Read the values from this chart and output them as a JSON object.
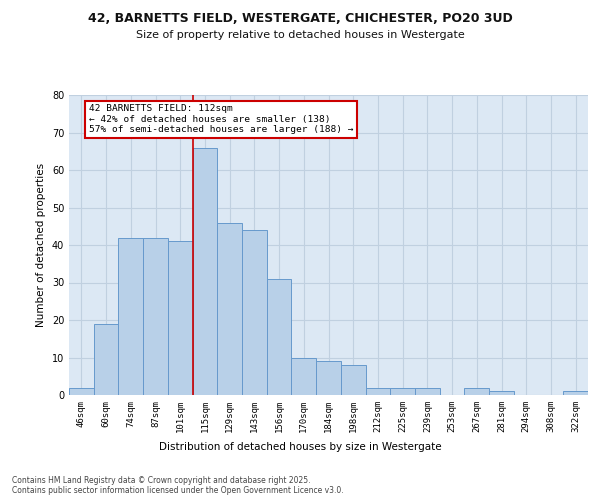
{
  "title_line1": "42, BARNETTS FIELD, WESTERGATE, CHICHESTER, PO20 3UD",
  "title_line2": "Size of property relative to detached houses in Westergate",
  "xlabel": "Distribution of detached houses by size in Westergate",
  "ylabel": "Number of detached properties",
  "bar_labels": [
    "46sqm",
    "60sqm",
    "74sqm",
    "87sqm",
    "101sqm",
    "115sqm",
    "129sqm",
    "143sqm",
    "156sqm",
    "170sqm",
    "184sqm",
    "198sqm",
    "212sqm",
    "225sqm",
    "239sqm",
    "253sqm",
    "267sqm",
    "281sqm",
    "294sqm",
    "308sqm",
    "322sqm"
  ],
  "bar_values": [
    2,
    19,
    42,
    42,
    41,
    66,
    46,
    44,
    31,
    10,
    9,
    8,
    2,
    2,
    2,
    0,
    2,
    1,
    0,
    0,
    1
  ],
  "bar_color": "#b8d0e8",
  "bar_edge_color": "#6699cc",
  "vline_x": 4.5,
  "vline_color": "#cc0000",
  "annotation_text": "42 BARNETTS FIELD: 112sqm\n← 42% of detached houses are smaller (138)\n57% of semi-detached houses are larger (188) →",
  "annotation_box_color": "#ffffff",
  "annotation_box_edge_color": "#cc0000",
  "ylim": [
    0,
    80
  ],
  "yticks": [
    0,
    10,
    20,
    30,
    40,
    50,
    60,
    70,
    80
  ],
  "grid_color": "#c0d0e0",
  "background_color": "#dce8f4",
  "fig_background": "#ffffff",
  "footer_text": "Contains HM Land Registry data © Crown copyright and database right 2025.\nContains public sector information licensed under the Open Government Licence v3.0."
}
